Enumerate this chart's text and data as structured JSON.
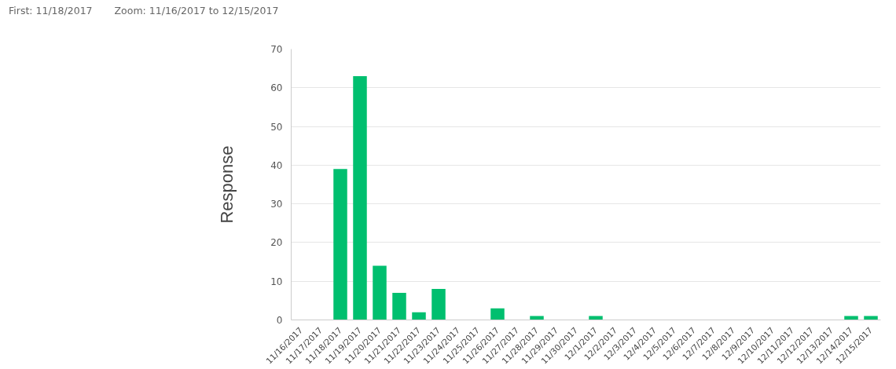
{
  "chart_data": {
    "type": "bar",
    "ylabel": "Response",
    "annotations": [
      "First: 11/18/2017",
      "Zoom: 11/16/2017 to 12/15/2017"
    ],
    "categories": [
      "11/16/2017",
      "11/17/2017",
      "11/18/2017",
      "11/19/2017",
      "11/20/2017",
      "11/21/2017",
      "11/22/2017",
      "11/23/2017",
      "11/24/2017",
      "11/25/2017",
      "11/26/2017",
      "11/27/2017",
      "11/28/2017",
      "11/29/2017",
      "11/30/2017",
      "12/1/2017",
      "12/2/2017",
      "12/3/2017",
      "12/4/2017",
      "12/5/2017",
      "12/6/2017",
      "12/7/2017",
      "12/8/2017",
      "12/9/2017",
      "12/10/2017",
      "12/11/2017",
      "12/12/2017",
      "12/13/2017",
      "12/14/2017",
      "12/15/2017"
    ],
    "values": [
      0,
      0,
      39,
      63,
      14,
      7,
      2,
      8,
      0,
      0,
      3,
      0,
      1,
      0,
      0,
      1,
      0,
      0,
      0,
      0,
      0,
      0,
      0,
      0,
      0,
      0,
      0,
      0,
      1,
      1
    ],
    "color": "#00bf6f",
    "ylim": [
      0,
      70
    ],
    "yticks": [
      0,
      10,
      20,
      30,
      40,
      50,
      60,
      70
    ],
    "grid": "y"
  }
}
